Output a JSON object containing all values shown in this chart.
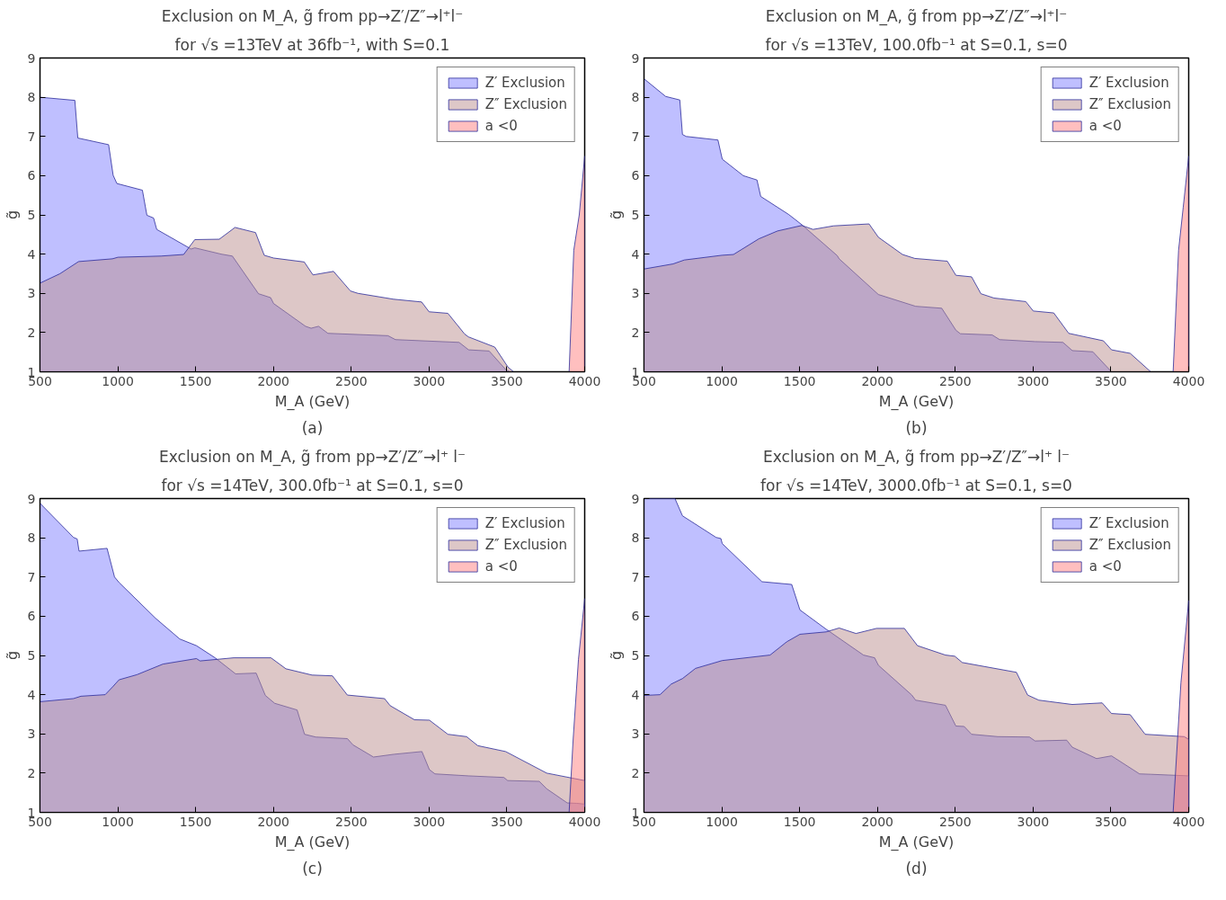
{
  "chart_data": [
    {
      "type": "area",
      "title": "Exclusion on M_A, g̃ from pp→Z′/Z″→l⁺l⁻",
      "subtitle": "for √s =13TeV at 36fb⁻¹, with S=0.1",
      "xlabel": "M_A (GeV)",
      "ylabel": "g̃",
      "annotations": [
        "(a)"
      ],
      "xlim": [
        500,
        4000
      ],
      "ylim": [
        1,
        9
      ],
      "xticks": [
        500,
        1000,
        1500,
        2000,
        2500,
        3000,
        3500,
        4000
      ],
      "yticks": [
        1,
        2,
        3,
        4,
        5,
        6,
        7,
        8,
        9
      ],
      "legend": "top right",
      "series": [
        {
          "name": "Z′ Exclusion",
          "color": "#8080ff",
          "x": [
            500,
            724,
            743,
            941,
            970,
            994,
            1158,
            1187,
            1230,
            1250,
            1471,
            1495,
            1664,
            1736,
            1904,
            1982,
            2001,
            2206,
            2242,
            2290,
            2350,
            2736,
            2784,
            3193,
            3254,
            3386,
            3494,
            3518
          ],
          "values": [
            8.0,
            7.92,
            6.96,
            6.79,
            6.01,
            5.8,
            5.63,
            4.99,
            4.92,
            4.63,
            4.13,
            4.16,
            4.0,
            3.95,
            2.99,
            2.89,
            2.74,
            2.16,
            2.11,
            2.16,
            1.98,
            1.92,
            1.82,
            1.75,
            1.56,
            1.53,
            1.05,
            1.0
          ]
        },
        {
          "name": "Z″ Exclusion",
          "color": "#bc8f8f",
          "x": [
            500,
            628,
            748,
            965,
            1001,
            1278,
            1423,
            1495,
            1652,
            1753,
            1885,
            1941,
            2001,
            2198,
            2254,
            2386,
            2495,
            2543,
            2772,
            2952,
            3000,
            3121,
            3229,
            3253,
            3422,
            3507,
            3543
          ],
          "values": [
            3.26,
            3.5,
            3.81,
            3.88,
            3.92,
            3.95,
            3.99,
            4.37,
            4.38,
            4.68,
            4.55,
            3.97,
            3.9,
            3.8,
            3.47,
            3.56,
            3.06,
            3.0,
            2.85,
            2.78,
            2.53,
            2.49,
            1.96,
            1.89,
            1.63,
            1.12,
            1.0
          ]
        },
        {
          "name": "a <0",
          "color": "#ff8080",
          "x": [
            3900,
            3930,
            3965,
            4000
          ],
          "values": [
            1.0,
            4.1,
            5.0,
            6.5
          ]
        }
      ]
    },
    {
      "type": "area",
      "title": "Exclusion on M_A, g̃ from pp→Z′/Z″→l⁺l⁻",
      "subtitle": "for √s =13TeV, 100.0fb⁻¹ at S=0.1, s=0",
      "xlabel": "M_A (GeV)",
      "ylabel": "g̃",
      "annotations": [
        "(b)"
      ],
      "xlim": [
        500,
        4000
      ],
      "ylim": [
        1,
        9
      ],
      "xticks": [
        500,
        1000,
        1500,
        2000,
        2500,
        3000,
        3500,
        4000
      ],
      "yticks": [
        1,
        2,
        3,
        4,
        5,
        6,
        7,
        8,
        9
      ],
      "legend": "top right",
      "series": [
        {
          "name": "Z′ Exclusion",
          "color": "#8080ff",
          "x": [
            500,
            639,
            730,
            747,
            771,
            975,
            1003,
            1138,
            1226,
            1250,
            1430,
            1514,
            1742,
            1754,
            2006,
            2245,
            2413,
            2504,
            2533,
            2737,
            2785,
            3013,
            3192,
            3252,
            3384,
            3504
          ],
          "values": [
            8.47,
            8.02,
            7.93,
            7.05,
            7.0,
            6.91,
            6.42,
            6.0,
            5.89,
            5.47,
            5.01,
            4.75,
            3.96,
            3.88,
            2.97,
            2.67,
            2.62,
            2.06,
            1.97,
            1.94,
            1.82,
            1.77,
            1.75,
            1.54,
            1.51,
            1.0
          ]
        },
        {
          "name": "Z″ Exclusion",
          "color": "#bc8f8f",
          "x": [
            500,
            687,
            759,
            1000,
            1075,
            1238,
            1358,
            1514,
            1586,
            1718,
            1946,
            2006,
            2161,
            2240,
            2449,
            2504,
            2605,
            2665,
            2749,
            2953,
            3001,
            3133,
            3229,
            3452,
            3504,
            3624,
            3756
          ],
          "values": [
            3.62,
            3.75,
            3.85,
            3.97,
            3.99,
            4.39,
            4.59,
            4.73,
            4.63,
            4.72,
            4.77,
            4.43,
            3.99,
            3.89,
            3.82,
            3.46,
            3.42,
            2.99,
            2.88,
            2.79,
            2.55,
            2.5,
            1.98,
            1.79,
            1.56,
            1.47,
            1.0
          ]
        },
        {
          "name": "a <0",
          "color": "#ff8080",
          "x": [
            3900,
            3935,
            3965,
            4000
          ],
          "values": [
            1.0,
            4.1,
            5.2,
            6.5
          ]
        }
      ]
    },
    {
      "type": "area",
      "title": "Exclusion on M_A, g̃ from pp→Z′/Z″→l⁺ l⁻",
      "subtitle": "for √s =14TeV, 300.0fb⁻¹ at S=0.1, s=0",
      "xlabel": "M_A (GeV)",
      "ylabel": "g̃",
      "annotations": [
        "(c)"
      ],
      "xlim": [
        500,
        4000
      ],
      "ylim": [
        1,
        9
      ],
      "xticks": [
        500,
        1000,
        1500,
        2000,
        2500,
        3000,
        3500,
        4000
      ],
      "yticks": [
        1,
        2,
        3,
        4,
        5,
        6,
        7,
        8,
        9
      ],
      "legend": "top right",
      "series": [
        {
          "name": "Z′ Exclusion",
          "color": "#8080ff",
          "x": [
            500,
            715,
            739,
            751,
            931,
            979,
            1008,
            1242,
            1398,
            1505,
            1625,
            1757,
            1889,
            1948,
            2008,
            2152,
            2200,
            2272,
            2475,
            2511,
            2643,
            2774,
            2954,
            3002,
            3038,
            3253,
            3481,
            3505,
            3708,
            3756,
            3888,
            3948,
            4000
          ],
          "values": [
            8.88,
            8.01,
            7.97,
            7.66,
            7.73,
            7.0,
            6.86,
            5.95,
            5.42,
            5.25,
            4.94,
            4.53,
            4.55,
            3.98,
            3.78,
            3.61,
            2.99,
            2.92,
            2.88,
            2.72,
            2.41,
            2.48,
            2.55,
            2.09,
            1.98,
            1.93,
            1.89,
            1.81,
            1.79,
            1.6,
            1.24,
            1.23,
            1.21
          ]
        },
        {
          "name": "Z″ Exclusion",
          "color": "#bc8f8f",
          "x": [
            500,
            715,
            763,
            919,
            967,
            1008,
            1123,
            1290,
            1505,
            1529,
            1745,
            1984,
            2080,
            2248,
            2379,
            2475,
            2714,
            2750,
            2906,
            3002,
            3121,
            3241,
            3313,
            3492,
            3756,
            4000
          ],
          "values": [
            3.82,
            3.9,
            3.96,
            4.0,
            4.2,
            4.38,
            4.51,
            4.78,
            4.92,
            4.86,
            4.94,
            4.94,
            4.66,
            4.5,
            4.48,
            3.99,
            3.9,
            3.72,
            3.36,
            3.35,
            2.99,
            2.93,
            2.7,
            2.55,
            2.0,
            1.81
          ]
        },
        {
          "name": "a <0",
          "color": "#ff8080",
          "x": [
            3900,
            3925,
            3960,
            4000
          ],
          "values": [
            1.0,
            2.8,
            4.9,
            6.45
          ]
        }
      ]
    },
    {
      "type": "area",
      "title": "Exclusion on M_A, g̃ from pp→Z′/Z″→l⁺ l⁻",
      "subtitle": "for √s =14TeV, 3000.0fb⁻¹ at S=0.1, s=0",
      "xlabel": "M_A (GeV)",
      "ylabel": "g̃",
      "annotations": [
        "(d)"
      ],
      "xlim": [
        500,
        4000
      ],
      "ylim": [
        1,
        9
      ],
      "xticks": [
        500,
        1000,
        1500,
        2000,
        2500,
        3000,
        3500,
        4000
      ],
      "yticks": [
        1,
        2,
        3,
        4,
        5,
        6,
        7,
        8,
        9
      ],
      "legend": "top right",
      "series": [
        {
          "name": "Z′ Exclusion",
          "color": "#8080ff",
          "x": [
            500,
            699,
            747,
            963,
            994,
            1003,
            1226,
            1258,
            1449,
            1502,
            1670,
            1910,
            1982,
            2006,
            2221,
            2245,
            2437,
            2504,
            2557,
            2605,
            2773,
            2977,
            3013,
            3216,
            3252,
            3408,
            3504,
            3684,
            3756,
            4000
          ],
          "values": [
            9.0,
            9.0,
            8.56,
            8.01,
            7.98,
            7.85,
            7.0,
            6.88,
            6.81,
            6.16,
            5.67,
            5.01,
            4.94,
            4.75,
            3.99,
            3.86,
            3.73,
            3.2,
            3.19,
            2.99,
            2.93,
            2.92,
            2.82,
            2.84,
            2.66,
            2.37,
            2.44,
            1.98,
            1.97,
            1.93
          ]
        },
        {
          "name": "Z″ Exclusion",
          "color": "#bc8f8f",
          "x": [
            500,
            603,
            675,
            747,
            831,
            1003,
            1310,
            1418,
            1502,
            1670,
            1754,
            1862,
            1994,
            2173,
            2257,
            2437,
            2497,
            2545,
            2893,
            2965,
            3037,
            3252,
            3444,
            3504,
            3624,
            3720,
            3971,
            4000
          ],
          "values": [
            3.98,
            4.0,
            4.27,
            4.41,
            4.67,
            4.87,
            5.01,
            5.35,
            5.54,
            5.6,
            5.7,
            5.56,
            5.69,
            5.69,
            5.25,
            5.01,
            4.98,
            4.82,
            4.57,
            3.99,
            3.86,
            3.75,
            3.79,
            3.52,
            3.49,
            2.99,
            2.93,
            2.86
          ]
        },
        {
          "name": "a <0",
          "color": "#ff8080",
          "x": [
            3900,
            3950,
            4000
          ],
          "values": [
            1.0,
            4.3,
            6.4
          ]
        }
      ]
    }
  ]
}
